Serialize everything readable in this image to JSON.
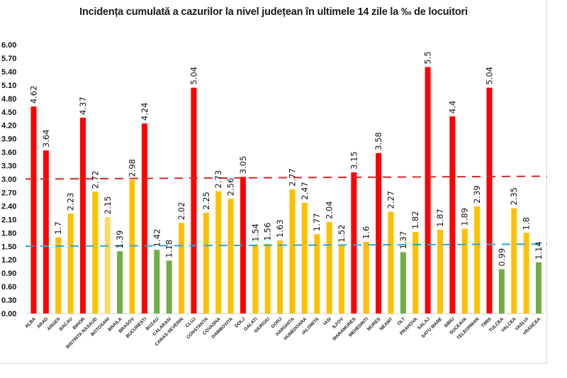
{
  "chart_data": {
    "type": "bar",
    "title": "Incidența cumulată a cazurilor la nivel județean în ultimele 14 zile la ‰ de locuitori",
    "xlabel": "",
    "ylabel": "",
    "ylim": [
      0,
      6.0
    ],
    "yticks": [
      "0.00",
      "0.30",
      "0.60",
      "0.90",
      "1.20",
      "1.50",
      "1.80",
      "2.10",
      "2.40",
      "2.70",
      "3.00",
      "3.30",
      "3.60",
      "3.90",
      "4.20",
      "4.50",
      "4.80",
      "5.10",
      "5.40",
      "5.70",
      "6.00"
    ],
    "grid": false,
    "legend": "none",
    "categories": [
      "ALBA",
      "ARAD",
      "ARGES",
      "BACAU",
      "BIHOR",
      "BISTRITA NASAUD",
      "BOTOSANI",
      "BRAILA",
      "BRASOV",
      "BUCURESTI",
      "BUZAU",
      "CALARASI",
      "CARAS-SEVERIN",
      "CLUJ",
      "CONSTANTA",
      "COVASNA",
      "DAMBOVITA",
      "DOLJ",
      "GALATI",
      "GIURGIU",
      "GORJ",
      "HARGHITA",
      "HUNEDOARA",
      "IALOMITA",
      "IASI",
      "ILFOV",
      "MARAMURES",
      "MEHEDINTI",
      "MURES",
      "NEAMT",
      "OLT",
      "PRAHOVA",
      "SALAJ",
      "SATU MARE",
      "SIBIU",
      "SUCEAVA",
      "TELEORMAN",
      "TIMIS",
      "TULCEA",
      "VALCEA",
      "VASLUI",
      "VRANCEA"
    ],
    "values": [
      4.62,
      3.64,
      1.7,
      2.23,
      4.37,
      2.72,
      2.15,
      1.39,
      2.98,
      4.24,
      1.42,
      1.18,
      2.02,
      5.04,
      2.25,
      2.73,
      2.56,
      3.05,
      1.54,
      1.56,
      1.63,
      2.77,
      2.47,
      1.77,
      2.04,
      1.52,
      3.15,
      1.6,
      3.58,
      2.27,
      1.37,
      1.82,
      5.5,
      1.87,
      4.4,
      1.89,
      2.39,
      5.04,
      0.99,
      2.35,
      1.8,
      1.14
    ],
    "value_labels": [
      "4.62",
      "3.64",
      "1.7",
      "2.23",
      "4.37",
      "2.72",
      "2.15",
      "1.39",
      "2.98",
      "4.24",
      "1.42",
      "1.18",
      "2.02",
      "5.04",
      "2.25",
      "2.73",
      "2.56",
      "3.05",
      "1.54",
      "1.56",
      "1.63",
      "2.77",
      "2.47",
      "1.77",
      "2.04",
      "1.52",
      "3.15",
      "1.6",
      "3.58",
      "2.27",
      "1.37",
      "1.82",
      "5.5",
      "1.87",
      "4.4",
      "1.89",
      "2.39",
      "5.04",
      "0.99",
      "2.35",
      "1.8",
      "1.14"
    ],
    "bar_colors": [
      "red",
      "red",
      "yellow",
      "yellow",
      "red",
      "yellow",
      "lightyellow",
      "green",
      "yellow",
      "red",
      "green",
      "green",
      "yellow",
      "red",
      "yellow",
      "yellow",
      "yellow",
      "red",
      "yellow",
      "yellow",
      "yellow",
      "yellow",
      "yellow",
      "yellow",
      "yellow",
      "yellow",
      "red",
      "yellow",
      "red",
      "yellow",
      "green",
      "yellow",
      "red",
      "yellow",
      "red",
      "yellow",
      "yellow",
      "red",
      "green",
      "yellow",
      "yellow",
      "green"
    ],
    "palette": {
      "red": "#ff0000",
      "yellow": "#ffc000",
      "lightyellow": "#ffd966",
      "green": "#70ad47"
    },
    "reference_lines": [
      {
        "name": "threshold-3",
        "value": 3.0,
        "color": "#d62728",
        "style": "dashed"
      },
      {
        "name": "threshold-1.5",
        "value": 1.5,
        "color": "#2aa7d6",
        "style": "dashed"
      }
    ]
  }
}
